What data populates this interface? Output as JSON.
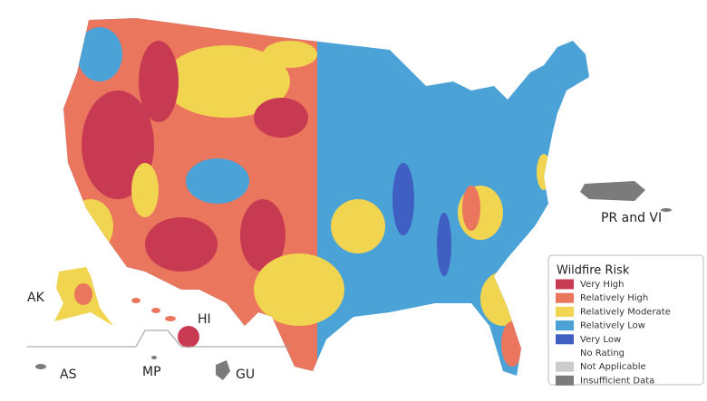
{
  "map": {
    "labels": {
      "ak": "AK",
      "hi": "HI",
      "pr_vi": "PR and VI",
      "as": "AS",
      "mp": "MP",
      "gu": "GU"
    },
    "legend": {
      "title": "Wildfire Risk",
      "items": [
        {
          "label": "Very High",
          "color": "#c83a52"
        },
        {
          "label": "Relatively High",
          "color": "#e9765d"
        },
        {
          "label": "Relatively Moderate",
          "color": "#f1d44f"
        },
        {
          "label": "Relatively Low",
          "color": "#4ba2d6"
        },
        {
          "label": "Very Low",
          "color": "#3f60c2"
        },
        {
          "label": "No Rating",
          "color": "#ffffff"
        },
        {
          "label": "Not Applicable",
          "color": "#cccccc"
        },
        {
          "label": "Insufficient Data",
          "color": "#7b7b7b"
        }
      ]
    }
  }
}
